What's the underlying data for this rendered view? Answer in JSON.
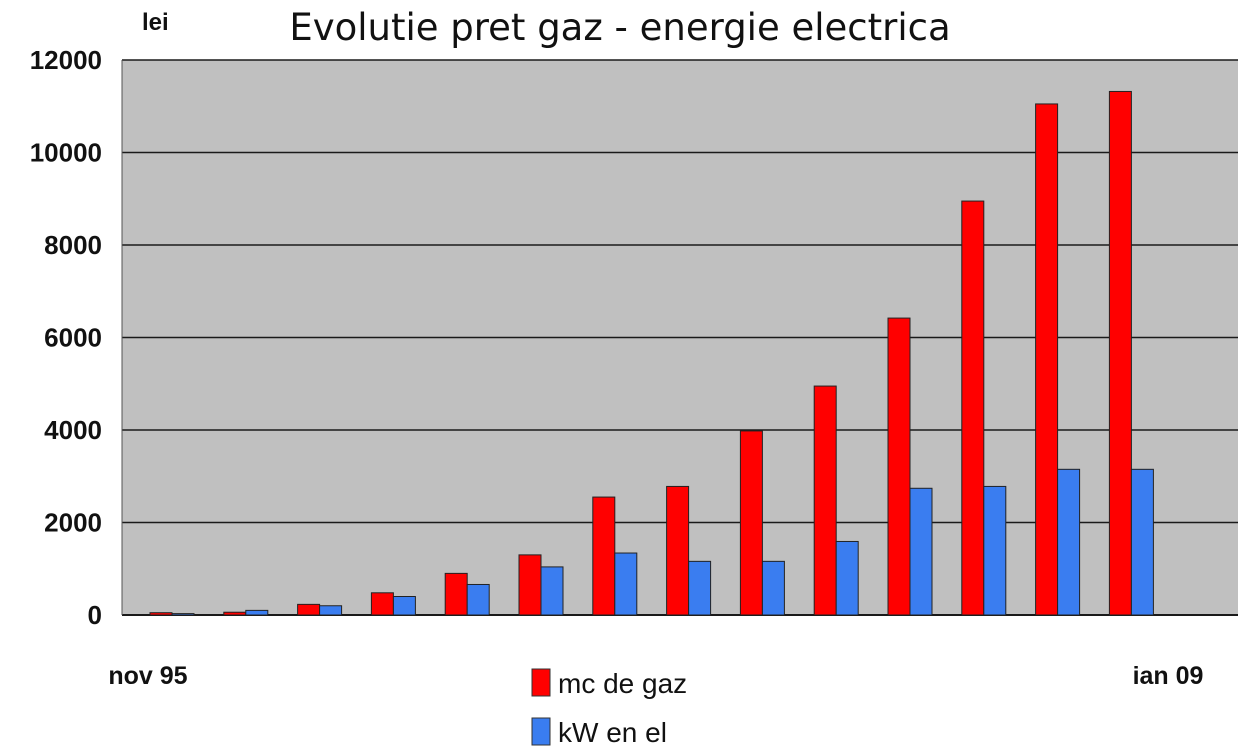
{
  "chart_data": {
    "type": "bar",
    "title": "Evolutie pret gaz - energie electrica",
    "ylabel": "lei",
    "ylim": [
      0,
      12000
    ],
    "yticks": [
      "0",
      "2000",
      "4000",
      "6000",
      "8000",
      "10000",
      "12000"
    ],
    "x_start_label": "nov 95",
    "x_end_label": "ian 09",
    "grid": true,
    "legend_position": "bottom-center",
    "plot_background": "#c0c0c0",
    "series": [
      {
        "name": "mc de gaz",
        "color": "#ff0000",
        "values": [
          50,
          60,
          230,
          480,
          900,
          1300,
          2550,
          2780,
          3980,
          4950,
          6420,
          8950,
          11050,
          11320
        ]
      },
      {
        "name": "kW en el",
        "color": "#3a7df0",
        "values": [
          30,
          100,
          200,
          400,
          660,
          1040,
          1340,
          1160,
          1160,
          1590,
          2740,
          2780,
          3150,
          3150
        ]
      }
    ]
  }
}
